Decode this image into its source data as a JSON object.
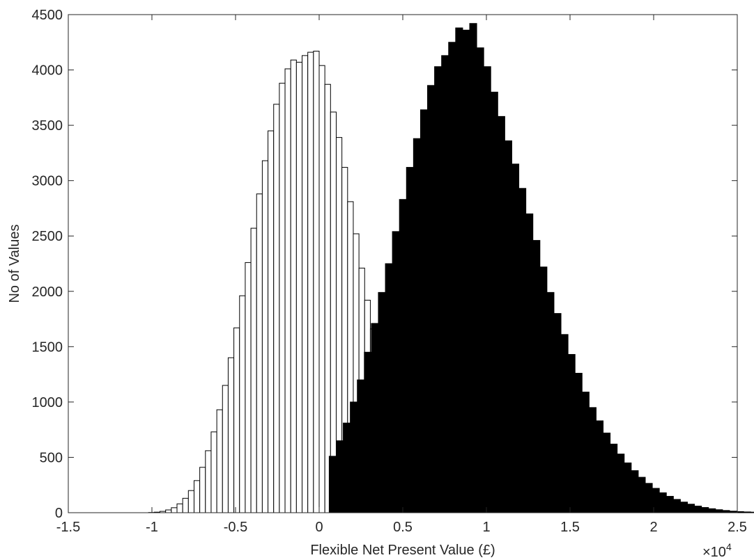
{
  "chart_data": {
    "type": "bar",
    "title": "",
    "xlabel": "Flexible Net Present Value (£)",
    "ylabel": "No of Values",
    "xlim": [
      -15000,
      25000
    ],
    "ylim": [
      0,
      4500
    ],
    "x_exponent_label": "×10",
    "x_exponent_power": "4",
    "x_tick_labels": [
      {
        "value": -15000,
        "label": "-1.5"
      },
      {
        "value": -10000,
        "label": "-1"
      },
      {
        "value": -5000,
        "label": "-0.5"
      },
      {
        "value": 0,
        "label": "0"
      },
      {
        "value": 5000,
        "label": "0.5"
      },
      {
        "value": 10000,
        "label": "1"
      },
      {
        "value": 15000,
        "label": "1.5"
      },
      {
        "value": 20000,
        "label": "2"
      },
      {
        "value": 25000,
        "label": "2.5"
      }
    ],
    "y_tick_labels": [
      {
        "value": 0,
        "label": "0"
      },
      {
        "value": 500,
        "label": "500"
      },
      {
        "value": 1000,
        "label": "1000"
      },
      {
        "value": 1500,
        "label": "1500"
      },
      {
        "value": 2000,
        "label": "2000"
      },
      {
        "value": 2500,
        "label": "2500"
      },
      {
        "value": 3000,
        "label": "3000"
      },
      {
        "value": 3500,
        "label": "3500"
      },
      {
        "value": 4000,
        "label": "4000"
      },
      {
        "value": 4500,
        "label": "4500"
      }
    ],
    "grid": false,
    "series": [
      {
        "fill": "#ffffff",
        "edge": "#000000",
        "bin_width": 340,
        "bin_start": -10200,
        "values": [
          2,
          5,
          12,
          25,
          45,
          80,
          130,
          200,
          290,
          410,
          560,
          730,
          930,
          1150,
          1400,
          1670,
          1960,
          2260,
          2570,
          2880,
          3180,
          3450,
          3690,
          3880,
          4010,
          4090,
          4070,
          4130,
          4160,
          4170,
          4040,
          3870,
          3620,
          3390,
          3120,
          2810,
          2520,
          2210,
          1920,
          1660,
          1410,
          1160,
          950,
          760,
          600,
          460,
          350,
          260,
          190,
          135,
          95,
          65,
          42,
          27,
          17,
          10,
          6,
          3,
          2,
          1
        ]
      },
      {
        "fill": "#000000",
        "edge": "#000000",
        "bin_width": 420,
        "bin_start": 600,
        "values": [
          510,
          650,
          810,
          1000,
          1200,
          1450,
          1710,
          1990,
          2250,
          2540,
          2830,
          3120,
          3380,
          3640,
          3860,
          4030,
          4130,
          4250,
          4380,
          4360,
          4420,
          4200,
          4030,
          3800,
          3580,
          3360,
          3150,
          2930,
          2700,
          2460,
          2220,
          1990,
          1800,
          1610,
          1430,
          1260,
          1090,
          950,
          830,
          720,
          620,
          530,
          450,
          380,
          320,
          265,
          220,
          180,
          148,
          120,
          96,
          77,
          60,
          47,
          36,
          27,
          20,
          14,
          10,
          7,
          5,
          3,
          2
        ]
      }
    ]
  }
}
